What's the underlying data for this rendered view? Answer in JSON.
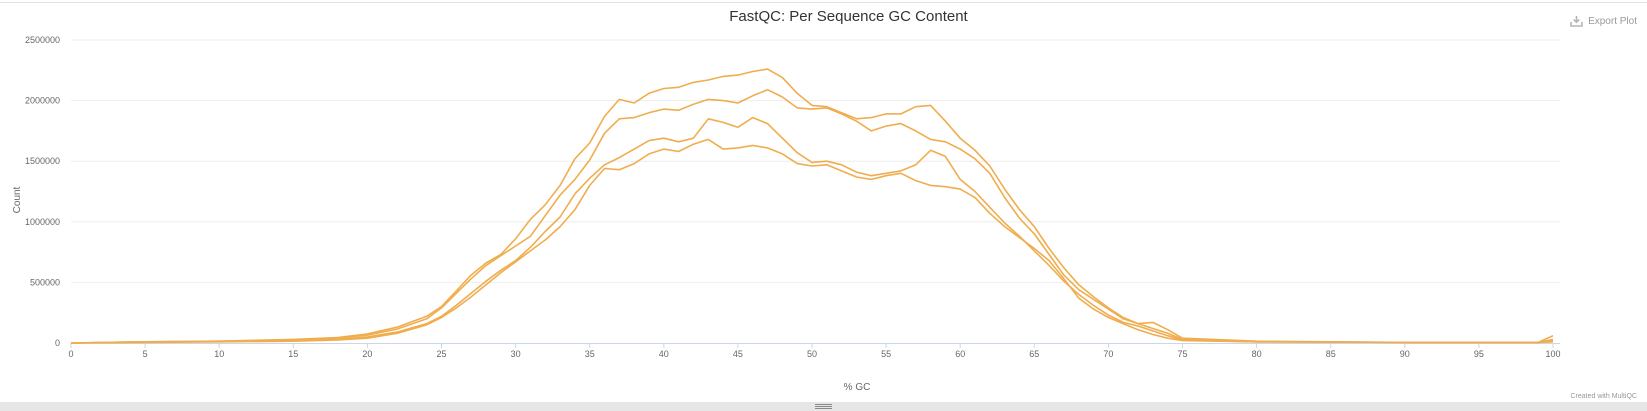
{
  "title": "FastQC: Per Sequence GC Content",
  "export": {
    "label": "Export Plot",
    "icon": "download-icon"
  },
  "credit": "Created with MultiQC",
  "colors": {
    "series": "#f0ad4e",
    "grid": "#eeeeee",
    "axis": "#ccd6eb",
    "text": "#666666"
  },
  "chart_data": {
    "type": "line",
    "title": "FastQC: Per Sequence GC Content",
    "xlabel": "% GC",
    "ylabel": "Count",
    "xlim": [
      0,
      100
    ],
    "ylim": [
      0,
      2500000
    ],
    "xticks": [
      "0",
      "5",
      "10",
      "15",
      "20",
      "25",
      "30",
      "35",
      "40",
      "45",
      "50",
      "55",
      "60",
      "65",
      "70",
      "75",
      "80",
      "85",
      "90",
      "95",
      "100"
    ],
    "yticks": [
      "0",
      "500000",
      "1000000",
      "1500000",
      "2000000",
      "2500000"
    ],
    "grid": true,
    "legend": "none",
    "series": [
      {
        "x": [
          0,
          5,
          10,
          15,
          18,
          20,
          22,
          24,
          25,
          26,
          27,
          28,
          29,
          30,
          31,
          32,
          33,
          34,
          35,
          36,
          37,
          38,
          39,
          40,
          41,
          42,
          43,
          44,
          45,
          46,
          47,
          48,
          49,
          50,
          51,
          52,
          53,
          54,
          55,
          56,
          57,
          58,
          59,
          60,
          61,
          62,
          63,
          64,
          65,
          66,
          67,
          68,
          69,
          70,
          71,
          72,
          73,
          74,
          75,
          80,
          90,
          99,
          100
        ],
        "y": [
          0,
          10000,
          15000,
          30000,
          45000,
          75000,
          130000,
          220000,
          300000,
          430000,
          560000,
          660000,
          730000,
          860000,
          1020000,
          1140000,
          1300000,
          1520000,
          1650000,
          1870000,
          2010000,
          1980000,
          2060000,
          2100000,
          2110000,
          2150000,
          2170000,
          2200000,
          2210000,
          2240000,
          2260000,
          2190000,
          2060000,
          1960000,
          1950000,
          1900000,
          1850000,
          1860000,
          1890000,
          1890000,
          1950000,
          1960000,
          1830000,
          1690000,
          1590000,
          1460000,
          1270000,
          1100000,
          960000,
          780000,
          620000,
          480000,
          380000,
          290000,
          210000,
          160000,
          120000,
          80000,
          30000,
          10000,
          5000,
          5000,
          30000
        ]
      },
      {
        "x": [
          0,
          5,
          10,
          15,
          18,
          20,
          22,
          24,
          25,
          26,
          27,
          28,
          29,
          30,
          31,
          32,
          33,
          34,
          35,
          36,
          37,
          38,
          39,
          40,
          41,
          42,
          43,
          44,
          45,
          46,
          47,
          48,
          49,
          50,
          51,
          52,
          53,
          54,
          55,
          56,
          57,
          58,
          59,
          60,
          61,
          62,
          63,
          64,
          65,
          66,
          67,
          68,
          69,
          70,
          71,
          72,
          73,
          74,
          75,
          80,
          90,
          99,
          100
        ],
        "y": [
          0,
          10000,
          15000,
          25000,
          40000,
          65000,
          115000,
          200000,
          290000,
          410000,
          530000,
          640000,
          720000,
          800000,
          880000,
          1050000,
          1220000,
          1350000,
          1510000,
          1730000,
          1850000,
          1860000,
          1900000,
          1930000,
          1920000,
          1970000,
          2010000,
          2000000,
          1980000,
          2040000,
          2090000,
          2030000,
          1940000,
          1930000,
          1940000,
          1890000,
          1830000,
          1750000,
          1790000,
          1810000,
          1750000,
          1680000,
          1660000,
          1600000,
          1520000,
          1400000,
          1200000,
          1030000,
          900000,
          730000,
          560000,
          440000,
          360000,
          280000,
          200000,
          160000,
          170000,
          110000,
          40000,
          15000,
          5000,
          5000,
          60000
        ]
      },
      {
        "x": [
          0,
          5,
          10,
          15,
          18,
          20,
          22,
          24,
          25,
          26,
          27,
          28,
          29,
          30,
          31,
          32,
          33,
          34,
          35,
          36,
          37,
          38,
          39,
          40,
          41,
          42,
          43,
          44,
          45,
          46,
          47,
          48,
          49,
          50,
          51,
          52,
          53,
          54,
          55,
          56,
          57,
          58,
          59,
          60,
          61,
          62,
          63,
          64,
          65,
          66,
          67,
          68,
          69,
          70,
          71,
          72,
          73,
          74,
          75,
          80,
          90,
          99,
          100
        ],
        "y": [
          0,
          10000,
          12000,
          20000,
          30000,
          50000,
          90000,
          160000,
          220000,
          310000,
          410000,
          510000,
          600000,
          680000,
          790000,
          920000,
          1040000,
          1230000,
          1360000,
          1470000,
          1530000,
          1600000,
          1670000,
          1690000,
          1660000,
          1690000,
          1850000,
          1820000,
          1780000,
          1860000,
          1810000,
          1690000,
          1570000,
          1490000,
          1500000,
          1470000,
          1410000,
          1380000,
          1400000,
          1420000,
          1470000,
          1590000,
          1540000,
          1350000,
          1250000,
          1120000,
          990000,
          880000,
          760000,
          640000,
          510000,
          400000,
          310000,
          230000,
          170000,
          140000,
          100000,
          60000,
          25000,
          10000,
          5000,
          5000,
          20000
        ]
      },
      {
        "x": [
          0,
          5,
          10,
          15,
          18,
          20,
          22,
          24,
          25,
          26,
          27,
          28,
          29,
          30,
          31,
          32,
          33,
          34,
          35,
          36,
          37,
          38,
          39,
          40,
          41,
          42,
          43,
          44,
          45,
          46,
          47,
          48,
          49,
          50,
          51,
          52,
          53,
          54,
          55,
          56,
          57,
          58,
          59,
          60,
          61,
          62,
          63,
          64,
          65,
          66,
          67,
          68,
          69,
          70,
          71,
          72,
          73,
          74,
          75,
          80,
          90,
          99,
          100
        ],
        "y": [
          0,
          5000,
          10000,
          15000,
          25000,
          40000,
          80000,
          150000,
          210000,
          290000,
          380000,
          480000,
          580000,
          670000,
          760000,
          850000,
          960000,
          1100000,
          1300000,
          1440000,
          1430000,
          1480000,
          1560000,
          1600000,
          1580000,
          1640000,
          1680000,
          1600000,
          1610000,
          1630000,
          1610000,
          1560000,
          1480000,
          1460000,
          1470000,
          1420000,
          1370000,
          1350000,
          1380000,
          1400000,
          1340000,
          1300000,
          1290000,
          1270000,
          1200000,
          1070000,
          960000,
          870000,
          780000,
          680000,
          530000,
          370000,
          280000,
          210000,
          160000,
          110000,
          70000,
          40000,
          20000,
          10000,
          5000,
          5000,
          10000
        ]
      }
    ]
  }
}
